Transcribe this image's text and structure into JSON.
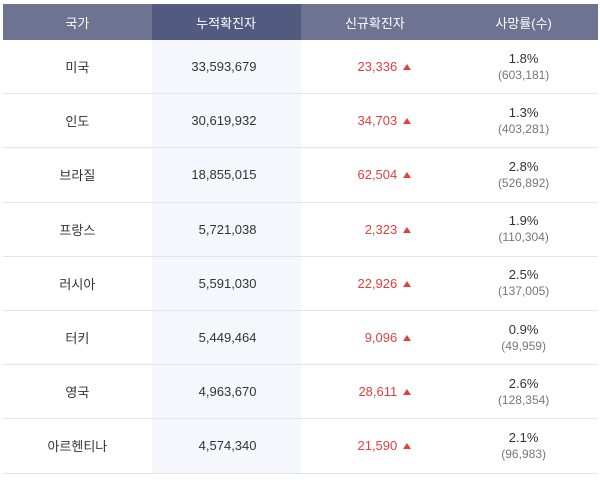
{
  "table": {
    "header": [
      "국가",
      "누적확진자",
      "신규확진자",
      "사망률(수)"
    ],
    "rows": [
      [
        "미국",
        "33,593,679",
        "23,336",
        "1.8%",
        "(603,181)"
      ],
      [
        "인도",
        "30,619,932",
        "34,703",
        "1.3%",
        "(403,281)"
      ],
      [
        "브라질",
        "18,855,015",
        "62,504",
        "2.8%",
        "(526,892)"
      ],
      [
        "프랑스",
        "5,721,038",
        "2,323",
        "1.9%",
        "(110,304)"
      ],
      [
        "러시아",
        "5,591,030",
        "22,926",
        "2.5%",
        "(137,005)"
      ],
      [
        "터키",
        "5,449,464",
        "9,096",
        "0.9%",
        "(49,959)"
      ],
      [
        "영국",
        "4,963,670",
        "28,611",
        "2.6%",
        "(128,354)"
      ],
      [
        "아르헨티나",
        "4,574,340",
        "21,590",
        "2.1%",
        "(96,983)"
      ]
    ]
  }
}
